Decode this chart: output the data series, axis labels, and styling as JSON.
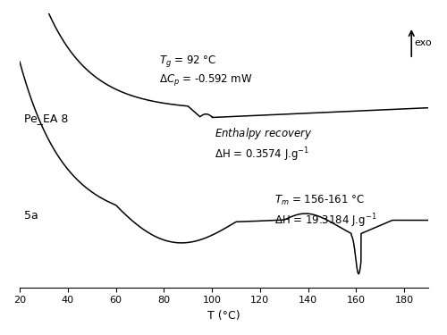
{
  "xlim": [
    20,
    190
  ],
  "xticks": [
    20,
    40,
    60,
    80,
    100,
    120,
    140,
    160,
    180
  ],
  "xlabel": "T (°C)",
  "background_color": "#ffffff",
  "curve1_label": "Pe_EA 8",
  "curve2_label": "5a",
  "exo_label": "exo",
  "line_color": "#000000",
  "font_size": 9
}
